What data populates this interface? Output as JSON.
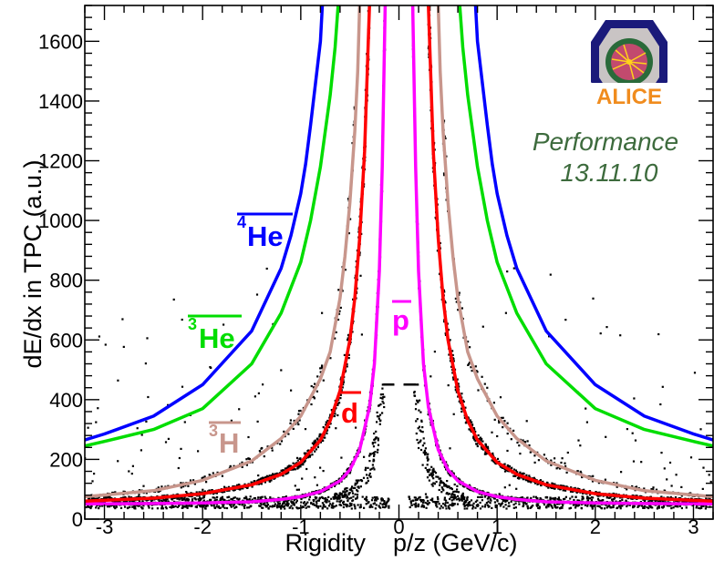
{
  "chart_data": {
    "type": "scatter",
    "title": "",
    "xlabel": "Rigidity    p/z (GeV/c)",
    "ylabel": "dE/dx in TPC (a.u.)",
    "xlim": [
      -3.2,
      3.2
    ],
    "ylim": [
      0,
      1720
    ],
    "x_ticks": [
      -3,
      -2,
      -1,
      0,
      1,
      2,
      3
    ],
    "y_ticks": [
      0,
      200,
      400,
      600,
      800,
      1000,
      1200,
      1400,
      1600
    ],
    "x_tick_labels": [
      "-3",
      "-2",
      "-1",
      "0",
      "1",
      "2",
      "3"
    ],
    "y_tick_labels": [
      "0",
      "200",
      "400",
      "600",
      "800",
      "1000",
      "1200",
      "1400",
      "1600"
    ],
    "series": [
      {
        "label_main": "p",
        "label_sup": "",
        "color": "#ff00ff",
        "points": [
          [
            -3.2,
            51
          ],
          [
            -2.5,
            52
          ],
          [
            -2,
            54
          ],
          [
            -1.5,
            58
          ],
          [
            -1.2,
            66
          ],
          [
            -1,
            75
          ],
          [
            -0.8,
            92
          ],
          [
            -0.6,
            128
          ],
          [
            -0.5,
            165
          ],
          [
            -0.4,
            232
          ],
          [
            -0.3,
            375
          ],
          [
            -0.25,
            520
          ],
          [
            -0.2,
            830
          ],
          [
            -0.17,
            1180
          ],
          [
            -0.15,
            1550
          ],
          [
            -0.14,
            1720
          ],
          [
            0.14,
            1720
          ],
          [
            0.15,
            1550
          ],
          [
            0.17,
            1180
          ],
          [
            0.2,
            830
          ],
          [
            0.25,
            520
          ],
          [
            0.3,
            375
          ],
          [
            0.4,
            232
          ],
          [
            0.5,
            165
          ],
          [
            0.6,
            128
          ],
          [
            0.8,
            92
          ],
          [
            1,
            75
          ],
          [
            1.2,
            66
          ],
          [
            1.5,
            58
          ],
          [
            2,
            54
          ],
          [
            2.5,
            52
          ],
          [
            3.2,
            51
          ]
        ]
      },
      {
        "label_main": "d",
        "label_sup": "",
        "color": "#ff0000",
        "points": [
          [
            -3.2,
            60
          ],
          [
            -2.5,
            70
          ],
          [
            -2,
            85
          ],
          [
            -1.5,
            115
          ],
          [
            -1.2,
            150
          ],
          [
            -1,
            190
          ],
          [
            -0.8,
            265
          ],
          [
            -0.7,
            330
          ],
          [
            -0.6,
            430
          ],
          [
            -0.5,
            600
          ],
          [
            -0.45,
            740
          ],
          [
            -0.4,
            940
          ],
          [
            -0.35,
            1230
          ],
          [
            -0.3,
            1720
          ],
          [
            0.3,
            1720
          ],
          [
            0.35,
            1230
          ],
          [
            0.4,
            940
          ],
          [
            0.45,
            740
          ],
          [
            0.5,
            600
          ],
          [
            0.6,
            430
          ],
          [
            0.7,
            330
          ],
          [
            0.8,
            265
          ],
          [
            1,
            190
          ],
          [
            1.2,
            150
          ],
          [
            1.5,
            115
          ],
          [
            2,
            85
          ],
          [
            2.5,
            70
          ],
          [
            3.2,
            60
          ]
        ]
      },
      {
        "label_main": "H",
        "label_sup": "3",
        "color": "#c8968c",
        "points": [
          [
            -3.2,
            75
          ],
          [
            -2.5,
            95
          ],
          [
            -2,
            130
          ],
          [
            -1.5,
            195
          ],
          [
            -1.2,
            270
          ],
          [
            -1,
            345
          ],
          [
            -0.8,
            470
          ],
          [
            -0.7,
            560
          ],
          [
            -0.6,
            740
          ],
          [
            -0.55,
            880
          ],
          [
            -0.5,
            1060
          ],
          [
            -0.45,
            1300
          ],
          [
            -0.42,
            1500
          ],
          [
            -0.4,
            1720
          ],
          [
            0.4,
            1720
          ],
          [
            0.42,
            1500
          ],
          [
            0.45,
            1300
          ],
          [
            0.5,
            1060
          ],
          [
            0.55,
            880
          ],
          [
            0.6,
            740
          ],
          [
            0.7,
            560
          ],
          [
            0.8,
            470
          ],
          [
            1,
            345
          ],
          [
            1.2,
            270
          ],
          [
            1.5,
            195
          ],
          [
            2,
            130
          ],
          [
            2.5,
            95
          ],
          [
            3.2,
            75
          ]
        ]
      },
      {
        "label_main": "He",
        "label_sup": "3",
        "color": "#00dd00",
        "points": [
          [
            -3.2,
            245
          ],
          [
            -3,
            260
          ],
          [
            -2.5,
            300
          ],
          [
            -2,
            370
          ],
          [
            -1.5,
            520
          ],
          [
            -1.2,
            690
          ],
          [
            -1,
            860
          ],
          [
            -0.9,
            1000
          ],
          [
            -0.8,
            1180
          ],
          [
            -0.7,
            1420
          ],
          [
            -0.65,
            1580
          ],
          [
            -0.62,
            1720
          ],
          [
            0.62,
            1720
          ],
          [
            0.65,
            1580
          ],
          [
            0.7,
            1420
          ],
          [
            0.8,
            1180
          ],
          [
            0.9,
            1000
          ],
          [
            1,
            860
          ],
          [
            1.2,
            690
          ],
          [
            1.5,
            520
          ],
          [
            2,
            370
          ],
          [
            2.5,
            300
          ],
          [
            3,
            260
          ],
          [
            3.2,
            245
          ]
        ]
      },
      {
        "label_main": "He",
        "label_sup": "4",
        "color": "#0000ff",
        "points": [
          [
            -3.2,
            265
          ],
          [
            -3,
            285
          ],
          [
            -2.5,
            345
          ],
          [
            -2,
            450
          ],
          [
            -1.5,
            630
          ],
          [
            -1.2,
            840
          ],
          [
            -1.1,
            950
          ],
          [
            -1,
            1090
          ],
          [
            -0.95,
            1190
          ],
          [
            -0.9,
            1320
          ],
          [
            -0.85,
            1460
          ],
          [
            -0.8,
            1600
          ],
          [
            -0.78,
            1720
          ],
          [
            0.78,
            1720
          ],
          [
            0.8,
            1600
          ],
          [
            0.85,
            1460
          ],
          [
            0.9,
            1320
          ],
          [
            0.95,
            1190
          ],
          [
            1,
            1090
          ],
          [
            1.1,
            950
          ],
          [
            1.2,
            840
          ],
          [
            1.5,
            630
          ],
          [
            2,
            450
          ],
          [
            2.5,
            345
          ],
          [
            3,
            285
          ],
          [
            3.2,
            265
          ]
        ]
      }
    ],
    "annotations": {
      "performance": "Performance",
      "date": "13.11.10",
      "logo_text": "ALICE"
    }
  }
}
